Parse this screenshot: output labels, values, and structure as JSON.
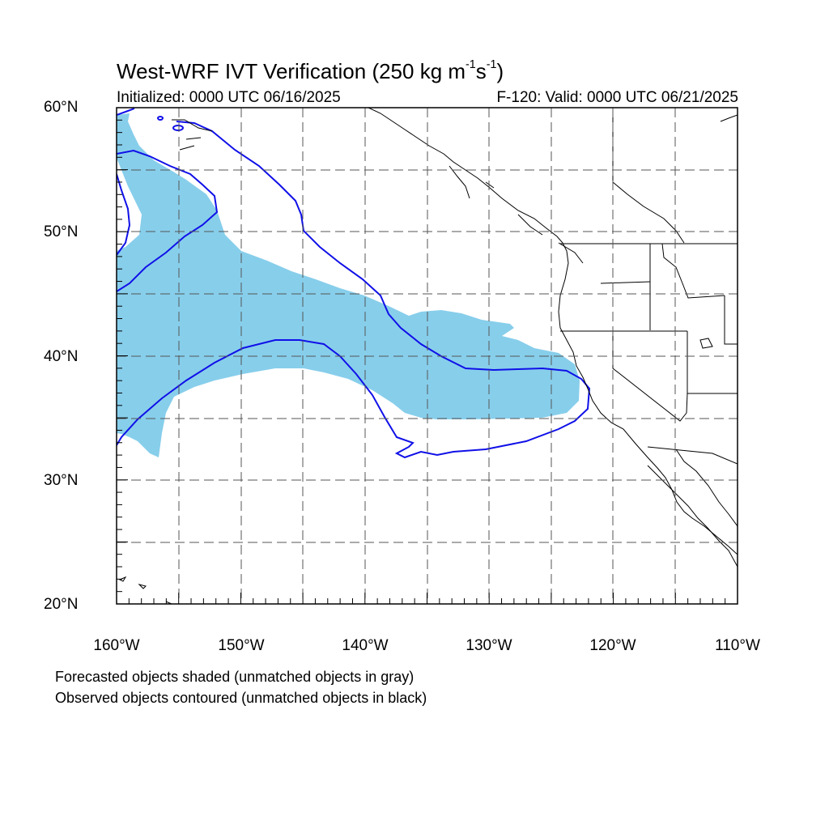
{
  "title": {
    "main": "West-WRF IVT Verification (250 kg m",
    "sup1": "-1",
    "mid": "s",
    "sup2": "-1",
    "end": ")"
  },
  "subtitle_left": "Initialized: 0000 UTC 06/16/2025",
  "subtitle_right": "F-120: Valid: 0000 UTC 06/21/2025",
  "lat_labels": [
    "60°N",
    "50°N",
    "40°N",
    "30°N",
    "20°N"
  ],
  "lon_labels": [
    "160°W",
    "150°W",
    "140°W",
    "130°W",
    "120°W",
    "110°W"
  ],
  "caption_forecast": "Forecasted objects shaded (unmatched objects in gray)",
  "caption_observed": "Observed objects contoured (unmatched objects in black)",
  "colors": {
    "forecast_fill": "#87ceeb",
    "observed_contour": "#1010e8",
    "coastline": "#000000",
    "grid": "#555555"
  },
  "map_extent": {
    "lon": [
      -160,
      -110
    ],
    "lat": [
      20,
      60
    ]
  }
}
